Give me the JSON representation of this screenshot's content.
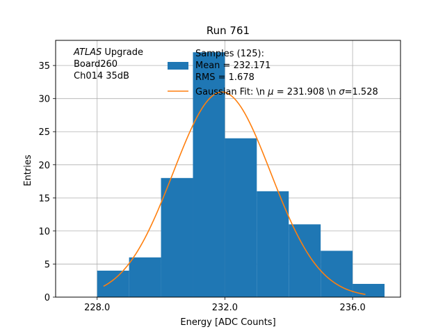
{
  "chart_data": {
    "type": "bar",
    "title": "Run 761",
    "xlabel": "Energy [ADC Counts]",
    "ylabel": "Entries",
    "xlim": [
      226.7,
      237.5
    ],
    "ylim": [
      0,
      38.8
    ],
    "grid": true,
    "x_ticks": [
      228,
      232,
      236
    ],
    "x_tick_labels": [
      "228.0",
      "232.0",
      "236.0"
    ],
    "y_ticks": [
      0,
      5,
      10,
      15,
      20,
      25,
      30,
      35
    ],
    "y_tick_labels": [
      "0",
      "5",
      "10",
      "15",
      "20",
      "25",
      "30",
      "35"
    ],
    "histogram": {
      "bin_edges": [
        228,
        229,
        230,
        231,
        232,
        233,
        234,
        235,
        236,
        237
      ],
      "counts": [
        4,
        6,
        18,
        37,
        24,
        16,
        11,
        7,
        2
      ],
      "color": "#1f77b4"
    },
    "fit_curve": {
      "type": "gaussian",
      "mu": 231.908,
      "sigma": 1.528,
      "amplitude": 31,
      "x_range": [
        228.2,
        236.4
      ],
      "color": "#ff7f0e"
    },
    "annotations": [
      {
        "italic": "ATLAS",
        "rest": " Upgrade"
      },
      {
        "italic": "",
        "rest": " Board260"
      },
      {
        "italic": "",
        "rest": " Ch014 35dB"
      }
    ],
    "legend": {
      "placement": "top-right",
      "entries": [
        {
          "kind": "patch",
          "color": "#1f77b4",
          "lines": [
            "Samples (125):",
            " Mean = 232.171",
            " RMS = 1.678"
          ]
        },
        {
          "kind": "line",
          "color": "#ff7f0e",
          "text_prefix": "Gaussian Fit: \\n ",
          "mu_symbol": "μ",
          "mu_text": " = 231.908 \\n ",
          "sigma_symbol": "σ",
          "sigma_text": "=1.528"
        }
      ]
    }
  }
}
